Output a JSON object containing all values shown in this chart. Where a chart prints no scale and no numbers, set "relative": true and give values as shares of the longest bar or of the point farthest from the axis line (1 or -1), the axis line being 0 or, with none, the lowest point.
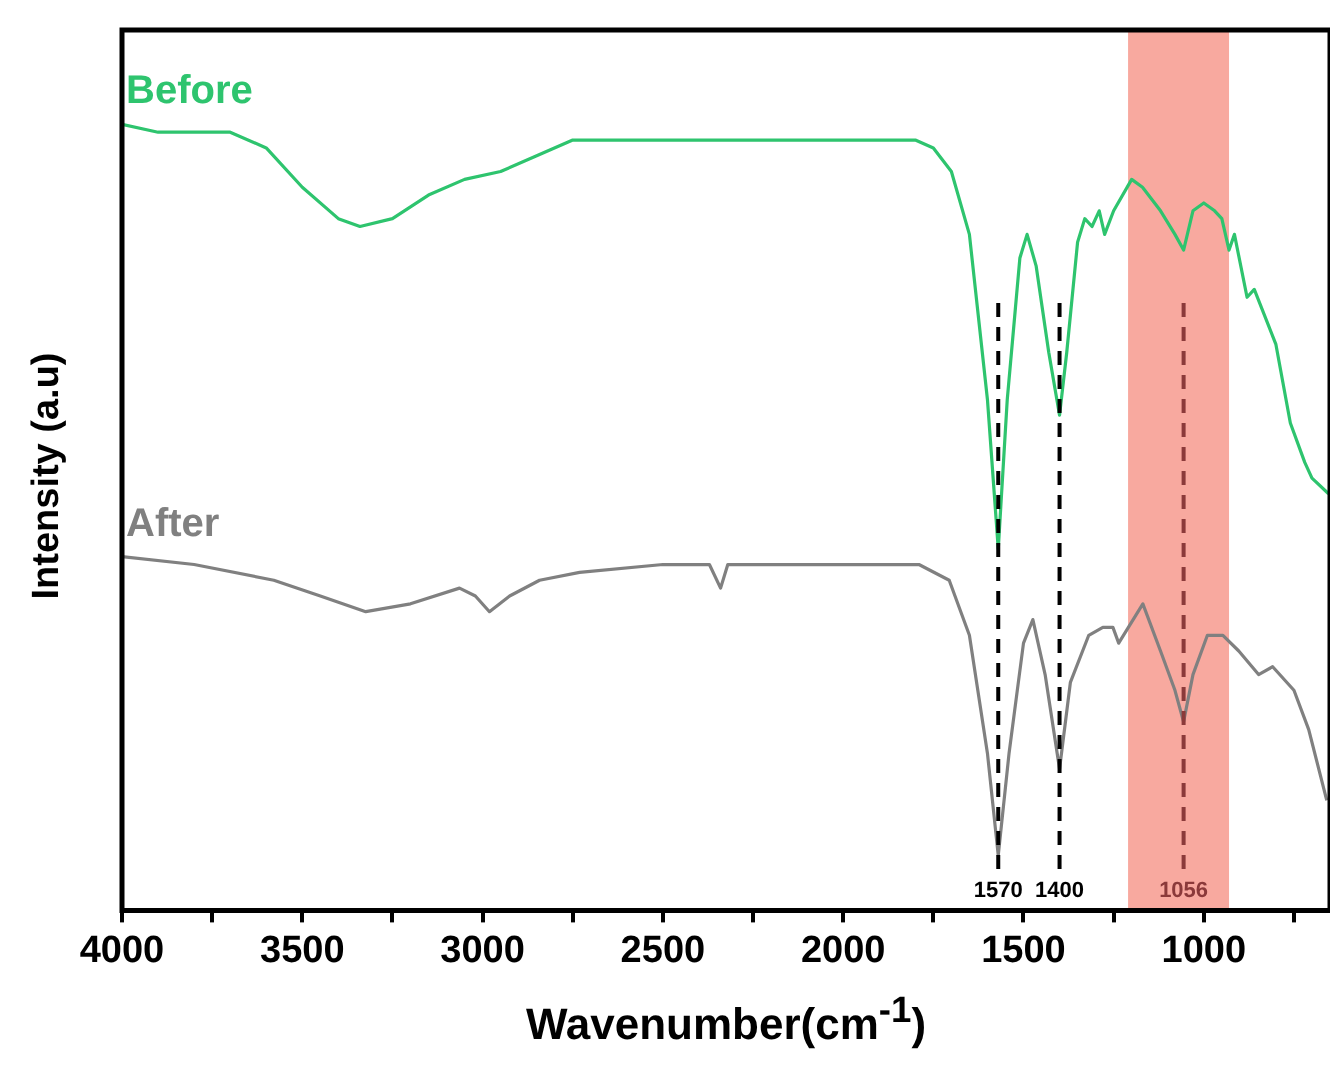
{
  "chart_data": {
    "type": "line",
    "relative": true,
    "xlabel": "Wavenumber(cm$^{-1}$)",
    "ylabel": "Intensity (a.u)",
    "xlim": [
      4000,
      650
    ],
    "xticks": [
      4000,
      {
        "value": 3750,
        "label": null
      },
      3500,
      {
        "value": 3250,
        "label": null
      },
      3000,
      {
        "value": 2750,
        "label": null
      },
      2500,
      {
        "value": 2250,
        "label": null
      },
      2000,
      {
        "value": 1750,
        "label": null
      },
      1500,
      {
        "value": 1250,
        "label": null
      },
      1000,
      {
        "value": 750,
        "label": null
      }
    ],
    "tick_labels": "x",
    "grid": false,
    "legend": false,
    "marker": "none",
    "line_style": "solid",
    "series": [
      {
        "name": "Before",
        "color": "#2ec46e",
        "x": [
          4000,
          3900,
          3700,
          3600,
          3500,
          3400,
          3340,
          3250,
          3150,
          3050,
          2950,
          2850,
          2750,
          2600,
          2400,
          2200,
          2000,
          1800,
          1750,
          1700,
          1650,
          1600,
          1570,
          1545,
          1510,
          1490,
          1465,
          1430,
          1400,
          1380,
          1350,
          1330,
          1310,
          1290,
          1275,
          1250,
          1200,
          1170,
          1120,
          1080,
          1056,
          1030,
          1000,
          970,
          950,
          930,
          915,
          880,
          860,
          800,
          760,
          720,
          700,
          654
        ],
        "values": [
          1.0,
          0.99,
          0.99,
          0.97,
          0.92,
          0.88,
          0.87,
          0.88,
          0.91,
          0.93,
          0.94,
          0.96,
          0.98,
          0.98,
          0.98,
          0.98,
          0.98,
          0.98,
          0.97,
          0.94,
          0.86,
          0.65,
          0.46,
          0.65,
          0.83,
          0.86,
          0.82,
          0.71,
          0.63,
          0.71,
          0.85,
          0.88,
          0.87,
          0.89,
          0.86,
          0.89,
          0.93,
          0.92,
          0.89,
          0.86,
          0.84,
          0.89,
          0.9,
          0.89,
          0.88,
          0.84,
          0.86,
          0.78,
          0.79,
          0.72,
          0.62,
          0.57,
          0.55,
          0.53
        ]
      },
      {
        "name": "After",
        "color": "#808080",
        "x": [
          4000,
          3800,
          3579,
          3450,
          3324,
          3200,
          3064,
          3020,
          2981,
          2925,
          2842,
          2731,
          2500,
          2371,
          2340,
          2320,
          2233,
          2000,
          1790,
          1706,
          1650,
          1600,
          1570,
          1540,
          1500,
          1474,
          1440,
          1400,
          1370,
          1319,
          1280,
          1252,
          1236,
          1169,
          1120,
          1080,
          1056,
          1030,
          990,
          947,
          903,
          848,
          809,
          750,
          709,
          659
        ],
        "values": [
          0.45,
          0.44,
          0.42,
          0.4,
          0.38,
          0.39,
          0.41,
          0.4,
          0.38,
          0.4,
          0.42,
          0.43,
          0.44,
          0.44,
          0.41,
          0.44,
          0.44,
          0.44,
          0.44,
          0.42,
          0.35,
          0.2,
          0.07,
          0.2,
          0.34,
          0.37,
          0.3,
          0.18,
          0.29,
          0.35,
          0.36,
          0.36,
          0.34,
          0.39,
          0.33,
          0.28,
          0.24,
          0.3,
          0.35,
          0.35,
          0.33,
          0.3,
          0.31,
          0.28,
          0.23,
          0.14
        ]
      }
    ],
    "ref_lines": [
      {
        "axis": "x",
        "value": 1570,
        "label": "1570",
        "color": "#000000",
        "line_style": "dashed"
      },
      {
        "axis": "x",
        "value": 1400,
        "label": "1400",
        "color": "#000000",
        "line_style": "dashed"
      },
      {
        "axis": "x",
        "value": 1056,
        "label": "1056",
        "color": "#8b3a3a",
        "line_style": "dashed"
      }
    ],
    "bands": [
      {
        "axis": "x",
        "from": 1210,
        "to": 930,
        "color": "#f8a99f"
      }
    ]
  }
}
